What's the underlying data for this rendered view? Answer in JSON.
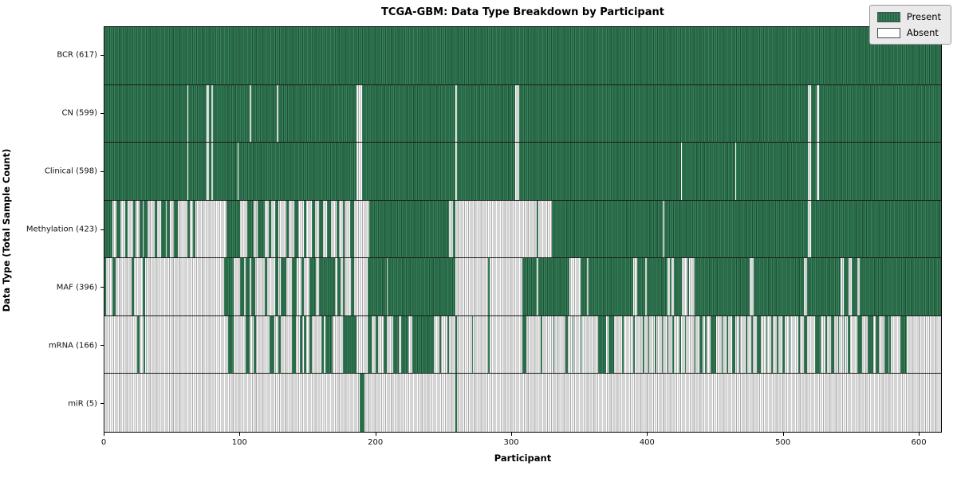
{
  "title": "TCGA-GBM: Data Type Breakdown by Participant",
  "x_axis_label": "Participant",
  "y_axis_label": "Data Type (Total Sample Count)",
  "legend": {
    "present_label": "Present",
    "absent_label": "Absent"
  },
  "colors": {
    "present": "#2e7d52",
    "present_edge": "#1d5338",
    "absent": "#ffffff",
    "absent_edge": "#ababab",
    "legend_bg": "#eaeaea"
  },
  "chart_data": {
    "type": "heatmap",
    "title": "TCGA-GBM: Data Type Breakdown by Participant",
    "xlabel": "Participant",
    "ylabel": "Data Type (Total Sample Count)",
    "xlim": [
      0,
      617
    ],
    "x_ticks": [
      "0",
      "100",
      "200",
      "300",
      "400",
      "500",
      "600"
    ],
    "x_tick_values": [
      0,
      100,
      200,
      300,
      400,
      500,
      600
    ],
    "legend_entries": [
      "Present",
      "Absent"
    ],
    "legend_position": "upper right",
    "grid": false,
    "cell_encoding": "present_runs are half-open [start,end) participant index ranges where the data type is Present; all other cells are Absent",
    "rows": [
      {
        "name": "BCR",
        "label": "BCR (617)",
        "total_samples": 617,
        "present_runs": [
          [
            0,
            617
          ]
        ]
      },
      {
        "name": "CN",
        "label": "CN (599)",
        "total_samples": 599,
        "present_runs": [
          [
            0,
            61
          ],
          [
            62,
            75
          ],
          [
            77,
            79
          ],
          [
            80,
            107
          ],
          [
            108,
            127
          ],
          [
            128,
            186
          ],
          [
            190,
            259
          ],
          [
            260,
            303
          ],
          [
            306,
            519
          ],
          [
            521,
            525
          ],
          [
            527,
            617
          ]
        ]
      },
      {
        "name": "Clinical",
        "label": "Clinical (598)",
        "total_samples": 598,
        "present_runs": [
          [
            0,
            61
          ],
          [
            62,
            75
          ],
          [
            77,
            79
          ],
          [
            80,
            98
          ],
          [
            99,
            186
          ],
          [
            190,
            259
          ],
          [
            260,
            303
          ],
          [
            306,
            425
          ],
          [
            426,
            465
          ],
          [
            466,
            519
          ],
          [
            521,
            525
          ],
          [
            527,
            617
          ]
        ]
      },
      {
        "name": "Methylation",
        "label": "Methylation (423)",
        "total_samples": 423,
        "present_runs": [
          [
            0,
            6
          ],
          [
            9,
            12
          ],
          [
            15,
            17
          ],
          [
            21,
            23
          ],
          [
            26,
            28
          ],
          [
            29,
            32
          ],
          [
            37,
            39
          ],
          [
            42,
            45
          ],
          [
            46,
            48
          ],
          [
            51,
            54
          ],
          [
            61,
            63
          ],
          [
            65,
            67
          ],
          [
            90,
            100
          ],
          [
            105,
            110
          ],
          [
            113,
            118
          ],
          [
            121,
            123
          ],
          [
            126,
            128
          ],
          [
            134,
            136
          ],
          [
            140,
            143
          ],
          [
            147,
            149
          ],
          [
            153,
            155
          ],
          [
            158,
            161
          ],
          [
            164,
            167
          ],
          [
            171,
            173
          ],
          [
            176,
            177
          ],
          [
            181,
            184
          ],
          [
            195,
            254
          ],
          [
            257,
            259
          ],
          [
            319,
            320
          ],
          [
            330,
            412
          ],
          [
            413,
            519
          ],
          [
            521,
            617
          ]
        ]
      },
      {
        "name": "MAF",
        "label": "MAF (396)",
        "total_samples": 396,
        "present_runs": [
          [
            0,
            1
          ],
          [
            6,
            8
          ],
          [
            20,
            22
          ],
          [
            28,
            30
          ],
          [
            88,
            95
          ],
          [
            100,
            103
          ],
          [
            104,
            107
          ],
          [
            108,
            111
          ],
          [
            118,
            120
          ],
          [
            126,
            128
          ],
          [
            130,
            134
          ],
          [
            138,
            142
          ],
          [
            145,
            147
          ],
          [
            151,
            156
          ],
          [
            158,
            170
          ],
          [
            172,
            174
          ],
          [
            176,
            177
          ],
          [
            182,
            184
          ],
          [
            194,
            208
          ],
          [
            209,
            259
          ],
          [
            283,
            284
          ],
          [
            308,
            319
          ],
          [
            320,
            343
          ],
          [
            351,
            356
          ],
          [
            357,
            390
          ],
          [
            393,
            399
          ],
          [
            400,
            415
          ],
          [
            417,
            418
          ],
          [
            420,
            426
          ],
          [
            430,
            431
          ],
          [
            435,
            476
          ],
          [
            479,
            516
          ],
          [
            518,
            543
          ],
          [
            545,
            549
          ],
          [
            551,
            555
          ],
          [
            557,
            617
          ]
        ]
      },
      {
        "name": "mRNA",
        "label": "mRNA (166)",
        "total_samples": 166,
        "present_runs": [
          [
            24,
            26
          ],
          [
            29,
            30
          ],
          [
            91,
            95
          ],
          [
            104,
            107
          ],
          [
            110,
            112
          ],
          [
            122,
            125
          ],
          [
            128,
            130
          ],
          [
            138,
            141
          ],
          [
            144,
            146
          ],
          [
            147,
            149
          ],
          [
            151,
            153
          ],
          [
            160,
            162
          ],
          [
            163,
            168
          ],
          [
            176,
            186
          ],
          [
            194,
            197
          ],
          [
            200,
            202
          ],
          [
            206,
            208
          ],
          [
            213,
            217
          ],
          [
            219,
            224
          ],
          [
            227,
            243
          ],
          [
            247,
            248
          ],
          [
            253,
            254
          ],
          [
            259,
            260
          ],
          [
            271,
            272
          ],
          [
            283,
            284
          ],
          [
            308,
            311
          ],
          [
            322,
            323
          ],
          [
            331,
            332
          ],
          [
            340,
            342
          ],
          [
            345,
            346
          ],
          [
            351,
            352
          ],
          [
            364,
            370
          ],
          [
            372,
            376
          ],
          [
            382,
            383
          ],
          [
            390,
            391
          ],
          [
            397,
            398
          ],
          [
            401,
            402
          ],
          [
            406,
            407
          ],
          [
            411,
            412
          ],
          [
            415,
            416
          ],
          [
            419,
            420
          ],
          [
            424,
            425
          ],
          [
            428,
            429
          ],
          [
            435,
            436
          ],
          [
            439,
            441
          ],
          [
            443,
            444
          ],
          [
            447,
            451
          ],
          [
            455,
            456
          ],
          [
            459,
            460
          ],
          [
            463,
            465
          ],
          [
            468,
            469
          ],
          [
            473,
            474
          ],
          [
            477,
            478
          ],
          [
            481,
            484
          ],
          [
            488,
            489
          ],
          [
            492,
            493
          ],
          [
            496,
            497
          ],
          [
            500,
            502
          ],
          [
            505,
            506
          ],
          [
            512,
            513
          ],
          [
            516,
            518
          ],
          [
            524,
            528
          ],
          [
            532,
            533
          ],
          [
            536,
            538
          ],
          [
            541,
            542
          ],
          [
            545,
            546
          ],
          [
            548,
            550
          ],
          [
            555,
            559
          ],
          [
            563,
            567
          ],
          [
            569,
            571
          ],
          [
            575,
            578
          ],
          [
            579,
            580
          ],
          [
            587,
            592
          ]
        ]
      },
      {
        "name": "miR",
        "label": "miR (5)",
        "total_samples": 5,
        "present_runs": [
          [
            188,
            192
          ],
          [
            259,
            260
          ]
        ]
      }
    ]
  }
}
